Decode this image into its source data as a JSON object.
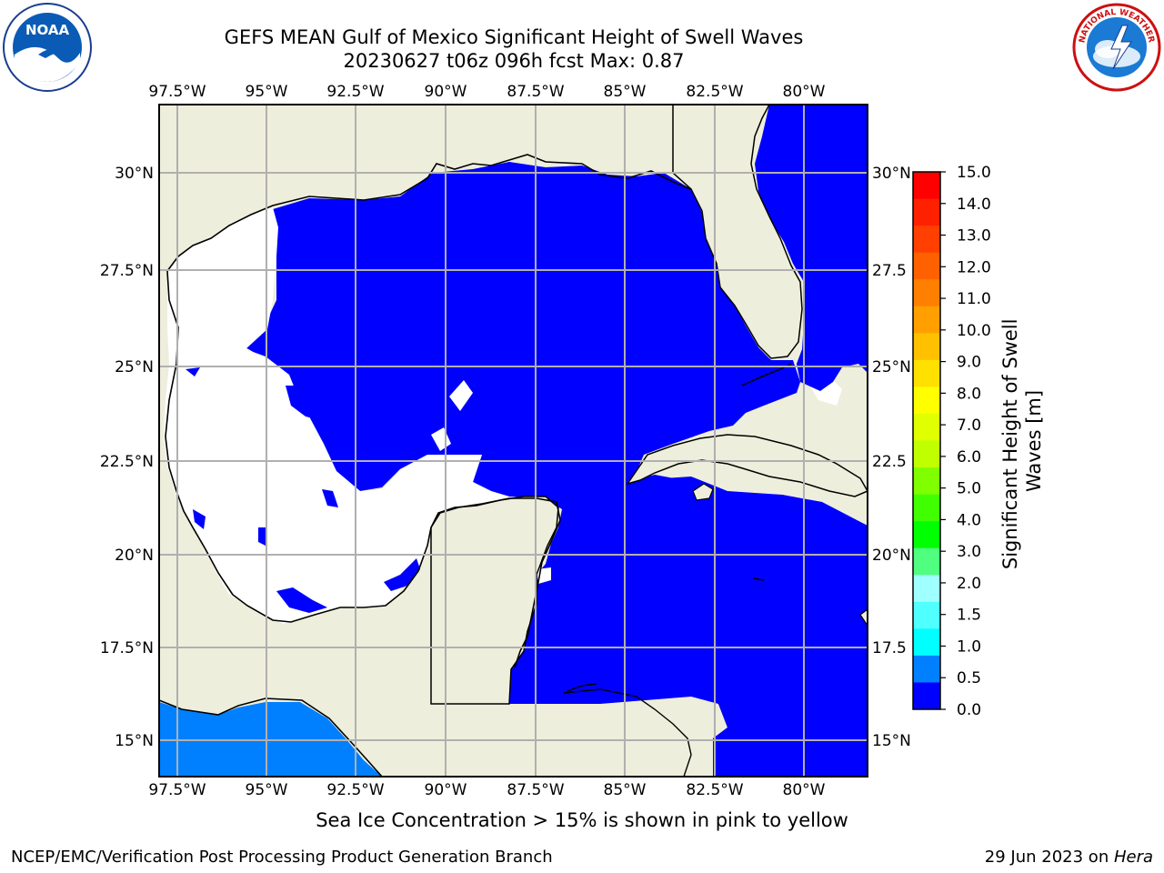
{
  "title": {
    "line1": "GEFS MEAN Gulf of Mexico Significant Height of Swell Waves",
    "line2": "20230627 t06z 096h fcst   Max: 0.87"
  },
  "logos": {
    "left": {
      "icon": "noaa-logo",
      "text": "NOAA"
    },
    "right": {
      "icon": "national-weather-service-logo",
      "text": "NATIONAL WEATHER SERVICE"
    }
  },
  "map": {
    "lon_labels": [
      "97.5°W",
      "95°W",
      "92.5°W",
      "90°W",
      "87.5°W",
      "85°W",
      "82.5°W",
      "80°W"
    ],
    "lat_labels": [
      "30°N",
      "27.5°N",
      "25°N",
      "22.5°N",
      "20°N",
      "17.5°N",
      "15°N"
    ],
    "lat_labels_right": [
      "30°N",
      "27.5",
      "25°N",
      "22.5",
      "20°N",
      "17.5",
      "15°N"
    ],
    "colors": {
      "land": "#eeeedc",
      "ocean_low": "#0000ff",
      "ocean_mid": "#0080ff",
      "no_data": "#ffffff",
      "grid": "#b0b0b0"
    }
  },
  "colorbar": {
    "label": "Significant Height of Swell Waves [m]",
    "label_line1": "Significant Height of Swell",
    "label_line2": "Waves [m]",
    "ticks": [
      "15.0",
      "14.0",
      "13.0",
      "12.0",
      "11.0",
      "10.0",
      "9.0",
      "8.0",
      "7.0",
      "6.0",
      "5.0",
      "4.0",
      "3.0",
      "2.0",
      "1.5",
      "1.0",
      "0.5",
      "0.0"
    ],
    "colors_top_to_bottom": [
      "#ff0000",
      "#ff2000",
      "#ff4000",
      "#ff6000",
      "#ff8000",
      "#ffa000",
      "#ffc000",
      "#ffe000",
      "#ffff00",
      "#e0ff00",
      "#c0ff00",
      "#80ff00",
      "#40ff00",
      "#00ff00",
      "#50ff80",
      "#a0ffff",
      "#50ffff",
      "#00ffff",
      "#0080ff",
      "#0000ff"
    ]
  },
  "footer": {
    "note": "Sea Ice Concentration > 15% is shown in pink to yellow",
    "left": "NCEP/EMC/Verification Post Processing Product Generation Branch",
    "right_date": "29 Jun 2023 on ",
    "right_host": "Hera"
  }
}
